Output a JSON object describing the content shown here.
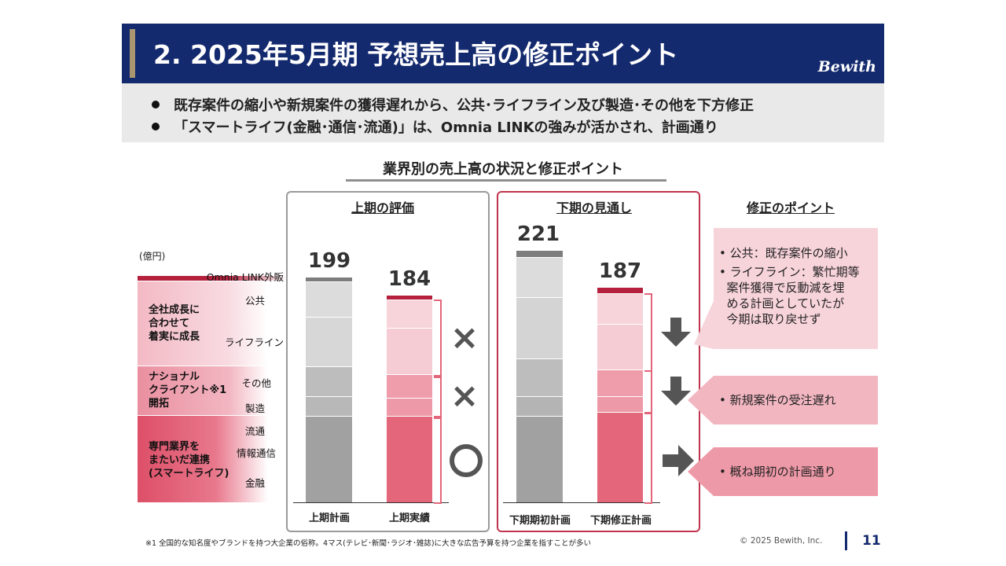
{
  "header": {
    "title": "2. 2025年5月期 予想売上高の修正ポイント",
    "logo": "Bewith"
  },
  "summary": [
    "既存案件の縮小や新規案件の獲得遅れから、公共･ライフライン及び製造･その他を下方修正",
    "「スマートライフ(金融･通信･流通)」は、Omnia LINKの強みが活かされ、計画通り"
  ],
  "subtitle": "業界別の売上高の状況と修正ポイント",
  "unit": "(億円)",
  "segments": [
    "Omnia LINK外販",
    "公共",
    "ライフライン",
    "その他",
    "製造",
    "流通",
    "情報通信",
    "金融"
  ],
  "bands": [
    {
      "label": "全社成長に\n合わせて\n着実に成長"
    },
    {
      "label": "ナショナル\nクライアント※1\n開拓"
    },
    {
      "label": "専門業界を\nまたいだ連携\n(スマートライフ)"
    }
  ],
  "first_half": {
    "header": "上期の評価",
    "bars": [
      {
        "label": "上期計画",
        "value": "199"
      },
      {
        "label": "上期実績",
        "value": "184"
      }
    ],
    "marks": [
      "×",
      "×",
      "○"
    ]
  },
  "second_half": {
    "header": "下期の見通し",
    "bars": [
      {
        "label": "下期期初計画",
        "value": "221"
      },
      {
        "label": "下期修正計画",
        "value": "187"
      }
    ]
  },
  "points": {
    "header": "修正のポイント",
    "items": [
      {
        "lines": [
          "• 公共：既存案件の縮小",
          "• ライフライン：繁忙期等",
          "  案件獲得で反動減を埋",
          "  める計画としていたが",
          "  今期は取り戻せず"
        ]
      },
      {
        "lines": [
          "• 新規案件の受注遅れ"
        ]
      },
      {
        "lines": [
          "• 概ね期初の計画通り"
        ]
      }
    ]
  },
  "footer": {
    "footnote": "※1 全国的な知名度やブランドを持つ大企業の俗称。4マス(テレビ･新聞･ラジオ･雑誌)に大きな広告予算を持つ企業を指すことが多い",
    "copyright": "© 2025 Bewith, Inc.",
    "page": "11"
  },
  "colors": {
    "navy": "#142a6e",
    "gold": "#a99671",
    "crimson": "#b5213d",
    "pink_light": "#f7d3da",
    "pink_mid": "#ee99a8",
    "pink_dark": "#e3667b"
  }
}
